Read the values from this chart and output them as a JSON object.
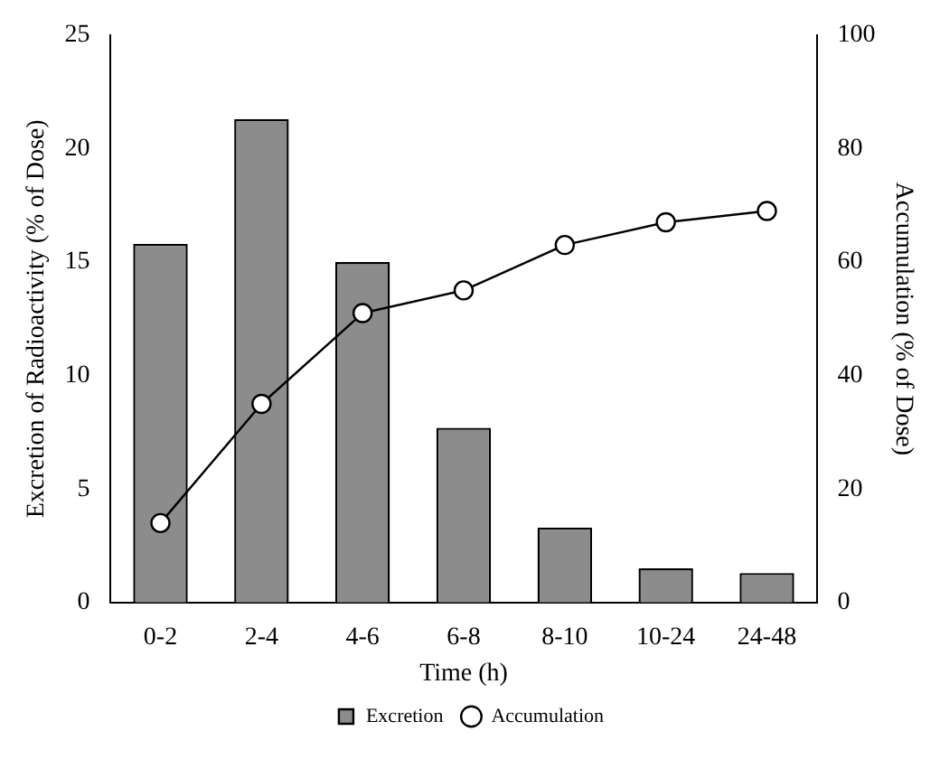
{
  "chart_data": {
    "type": "bar",
    "xlabel": "Time (h)",
    "ylabel": "Excretion of Radioactivity (% of Dose)",
    "y2label": "Accumulation (% of Dose)",
    "categories": [
      "0-2",
      "2-4",
      "4-6",
      "6-8",
      "8-10",
      "10-24",
      "24-48"
    ],
    "series": [
      {
        "name": "Excretion",
        "color": "#8c8c8c",
        "values": [
          15.8,
          21.3,
          15.0,
          7.7,
          3.3,
          1.5,
          1.3
        ]
      },
      {
        "name": "Accumulation",
        "type": "line",
        "axis": "y2",
        "color": "#000000",
        "marker": "circle",
        "values": [
          14,
          35,
          51,
          55,
          63,
          67,
          69
        ]
      }
    ],
    "ylim": [
      0,
      25
    ],
    "yticks": [
      0,
      5,
      10,
      15,
      20,
      25
    ],
    "y2lim": [
      0,
      100
    ],
    "y2ticks": [
      0,
      20,
      40,
      60,
      80,
      100
    ],
    "grid": false,
    "legend": "bottom"
  }
}
